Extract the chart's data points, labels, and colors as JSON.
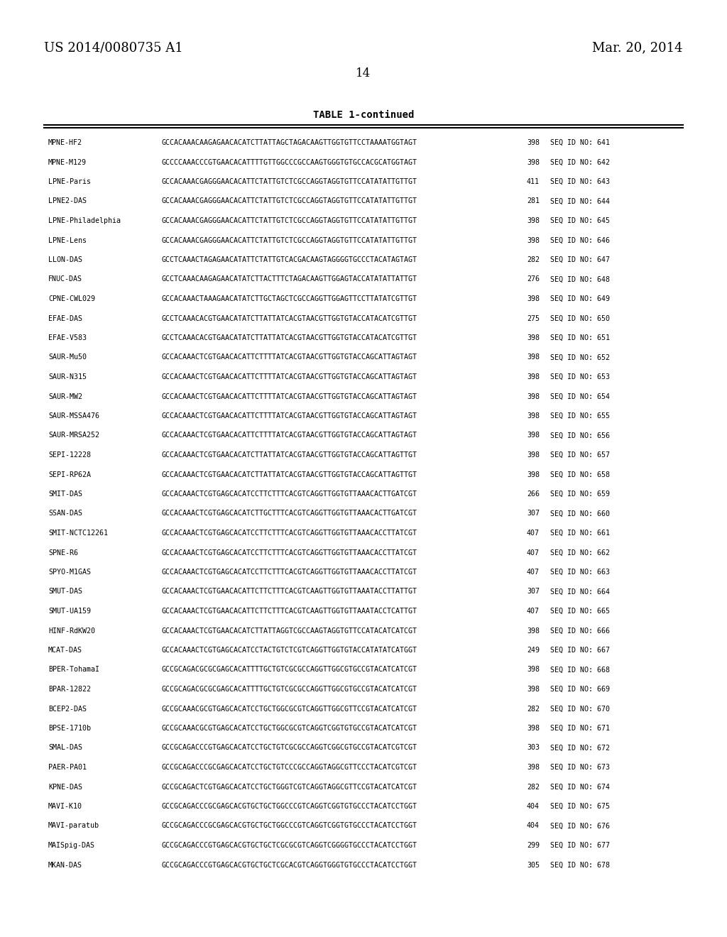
{
  "header_left": "US 2014/0080735 A1",
  "header_right": "Mar. 20, 2014",
  "page_number": "14",
  "table_title": "TABLE 1-continued",
  "rows": [
    [
      "MPNE-HF2",
      "GCCACAAACAAGAGAACACATCTTATTAGCTAGACAAGTTGGTGTTCCTAAAATGGTAGT",
      "398",
      "SEQ ID NO: 641"
    ],
    [
      "MPNE-M129",
      "GCCCCAAACCCGTGAACACATTTTGTTGGCCCGCCAAGTGGGTGTGCCACGCATGGTAGT",
      "398",
      "SEQ ID NO: 642"
    ],
    [
      "LPNE-Paris",
      "GCCACAAACGAGGGAACACATTCTATTGTCTCGCCAGGTAGGTGTTCCATATATTGTTGT",
      "411",
      "SEQ ID NO: 643"
    ],
    [
      "LPNE2-DAS",
      "GCCACAAACGAGGGAACACATTCTATTGTCTCGCCAGGTAGGTGTTCCATATATTGTTGT",
      "281",
      "SEQ ID NO: 644"
    ],
    [
      "LPNE-Philadelphia",
      "GCCACAAACGAGGGAACACATTCTATTGTCTCGCCAGGTAGGTGTTCCATATATTGTTGT",
      "398",
      "SEQ ID NO: 645"
    ],
    [
      "LPNE-Lens",
      "GCCACAAACGAGGGAACACATTCTATTGTCTCGCCAGGTAGGTGTTCCATATATTGTTGT",
      "398",
      "SEQ ID NO: 646"
    ],
    [
      "LLON-DAS",
      "GCCTCAAACTAGAGAACATATTCTATTGTCACGACAAGTAGGGGTGCCCTACATAGTAGT",
      "282",
      "SEQ ID NO: 647"
    ],
    [
      "FNUC-DAS",
      "GCCTCAAACAAGAGAACATATCTTACTTTCTAGACAAGTTGGAGTACCATATATTATTGT",
      "276",
      "SEQ ID NO: 648"
    ],
    [
      "CPNE-CWL029",
      "GCCACAAACTAAAGAACATATCTTGCTAGCTCGCCAGGTTGGAGTTCCTTATATCGTTGT",
      "398",
      "SEQ ID NO: 649"
    ],
    [
      "EFAE-DAS",
      "GCCTCAAACACGTGAACATATCTTATTATCACGTAACGTTGGTGTACCATACATCGTTGT",
      "275",
      "SEQ ID NO: 650"
    ],
    [
      "EFAE-V583",
      "GCCTCAAACACGTGAACATATCTTATTATCACGTAACGTTGGTGTACCATACATCGTTGT",
      "398",
      "SEQ ID NO: 651"
    ],
    [
      "SAUR-Mu50",
      "GCCACAAACTCGTGAACACATTCTTTTATCACGTAACGTTGGTGTACCAGCATTAGTAGT",
      "398",
      "SEQ ID NO: 652"
    ],
    [
      "SAUR-N315",
      "GCCACAAACTCGTGAACACATTCTTTTATCACGTAACGTTGGTGTACCAGCATTAGTAGT",
      "398",
      "SEQ ID NO: 653"
    ],
    [
      "SAUR-MW2",
      "GCCACAAACTCGTGAACACATTCTTTTATCACGTAACGTTGGTGTACCAGCATTAGTAGT",
      "398",
      "SEQ ID NO: 654"
    ],
    [
      "SAUR-MSSA476",
      "GCCACAAACTCGTGAACACATTCTTTTATCACGTAACGTTGGTGTACCAGCATTAGTAGT",
      "398",
      "SEQ ID NO: 655"
    ],
    [
      "SAUR-MRSA252",
      "GCCACAAACTCGTGAACACATTCTTTTATCACGTAACGTTGGTGTACCAGCATTAGTAGT",
      "398",
      "SEQ ID NO: 656"
    ],
    [
      "SEPI-12228",
      "GCCACAAACTCGTGAACACATCTTATTATCACGTAACGTTGGTGTACCAGCATTAGTTGT",
      "398",
      "SEQ ID NO: 657"
    ],
    [
      "SEPI-RP62A",
      "GCCACAAACTCGTGAACACATCTTATTATCACGTAACGTTGGTGTACCAGCATTAGTTGT",
      "398",
      "SEQ ID NO: 658"
    ],
    [
      "SMIT-DAS",
      "GCCACAAACTCGTGAGCACATCCTTCTTTCACGTCAGGTTGGTGTTAAACACTTGATCGT",
      "266",
      "SEQ ID NO: 659"
    ],
    [
      "SSAN-DAS",
      "GCCACAAACTCGTGAGCACATCTTGCTTTCACGTCAGGTTGGTGTTAAACACTTGATCGT",
      "307",
      "SEQ ID NO: 660"
    ],
    [
      "SMIT-NCTC12261",
      "GCCACAAACTCGTGAGCACATCCTTCTTTCACGTCAGGTTGGTGTTAAACACCTTATCGT",
      "407",
      "SEQ ID NO: 661"
    ],
    [
      "SPNE-R6",
      "GCCACAAACTCGTGAGCACATCCTTCTTTCACGTCAGGTTGGTGTTAAACACCTTATCGT",
      "407",
      "SEQ ID NO: 662"
    ],
    [
      "SPYO-M1GAS",
      "GCCACAAACTCGTGAGCACATCCTTCTTTCACGTCAGGTTGGTGTTAAACACCTTATCGT",
      "407",
      "SEQ ID NO: 663"
    ],
    [
      "SMUT-DAS",
      "GCCACAAACTCGTGAACACATTCTTCTTTCACGTCAAGTTGGTGTTAAATACCTTATTGT",
      "307",
      "SEQ ID NO: 664"
    ],
    [
      "SMUT-UA159",
      "GCCACAAACTCGTGAACACATTCTTCTTTCACGTCAAGTTGGTGTTAAATACCTCATTGT",
      "407",
      "SEQ ID NO: 665"
    ],
    [
      "HINF-RdKW20",
      "GCCACAAACTCGTGAACACATCTTATTAGGTCGCCAAGTAGGTGTTCCATACATCATCGT",
      "398",
      "SEQ ID NO: 666"
    ],
    [
      "MCAT-DAS",
      "GCCACAAACTCGTGAGCACATCCTACTGTCTCGTCAGGTTGGTGTACCATATATCATGGT",
      "249",
      "SEQ ID NO: 667"
    ],
    [
      "BPER-TohamaI",
      "GCCGCAGACGCGCGAGCACATTTTGCTGTCGCGCCAGGTTGGCGTGCCGTACATCATCGT",
      "398",
      "SEQ ID NO: 668"
    ],
    [
      "BPAR-12822",
      "GCCGCAGACGCGCGAGCACATTTTGCTGTCGCGCCAGGTTGGCGTGCCGTACATCATCGT",
      "398",
      "SEQ ID NO: 669"
    ],
    [
      "BCEP2-DAS",
      "GCCGCAAACGCGTGAGCACATCCTGCTGGCGCGTCAGGTTGGCGTTCCGTACATCATCGT",
      "282",
      "SEQ ID NO: 670"
    ],
    [
      "BPSE-1710b",
      "GCCGCAAACGCGTGAGCACATCCTGCTGGCGCGTCAGGTCGGTGTGCCGTACATCATCGT",
      "398",
      "SEQ ID NO: 671"
    ],
    [
      "SMAL-DAS",
      "GCCGCAGACCCGTGAGCACATCCTGCTGTCGCGCCAGGTCGGCGTGCCGTACATCGTCGT",
      "303",
      "SEQ ID NO: 672"
    ],
    [
      "PAER-PA01",
      "GCCGCAGACCCGCGAGCACATCCTGCTGTCCCGCCAGGTAGGCGTTCCCTACATCGTCGT",
      "398",
      "SEQ ID NO: 673"
    ],
    [
      "KPNE-DAS",
      "GCCGCAGACTCGTGAGCACATCCTGCTGGGTCGTCAGGTAGGCGTTCCGTACATCATCGT",
      "282",
      "SEQ ID NO: 674"
    ],
    [
      "MAVI-K10",
      "GCCGCAGACCCGCGAGCACGTGCTGCTGGCCCGTCAGGTCGGTGTGCCCTACATCCTGGT",
      "404",
      "SEQ ID NO: 675"
    ],
    [
      "MAVI-paratub",
      "GCCGCAGACCCGCGAGCACGTGCTGCTGGCCCGTCAGGTCGGTGTGCCCTACATCCTGGT",
      "404",
      "SEQ ID NO: 676"
    ],
    [
      "MAISpig-DAS",
      "GCCGCAGACCCGTGAGCACGTGCTGCTCGCGCGTCAGGTCGGGGTGCCCTACATCCTGGT",
      "299",
      "SEQ ID NO: 677"
    ],
    [
      "MKAN-DAS",
      "GCCGCAGACCCGTGAGCACGTGCTGCTCGCACGTCAGGTGGGTGTGCCCTACATCCTGGT",
      "305",
      "SEQ ID NO: 678"
    ]
  ],
  "bg_color": "#ffffff",
  "text_color": "#000000"
}
